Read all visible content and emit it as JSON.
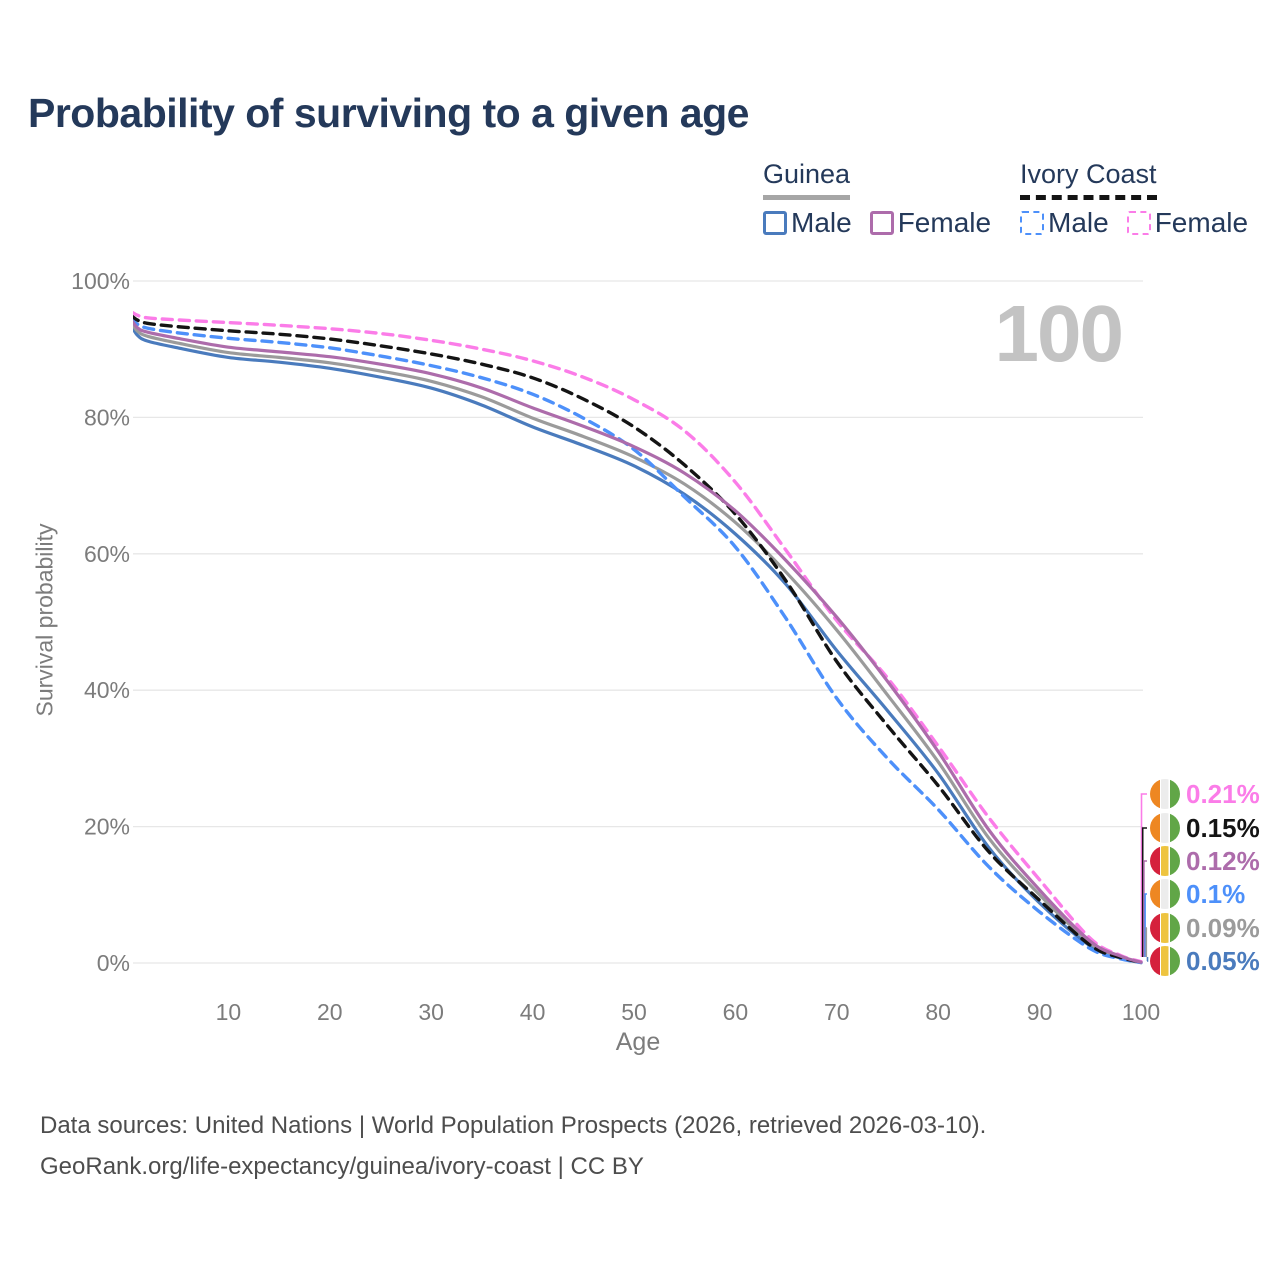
{
  "title": "Probability of surviving to a given age",
  "watermark": "100",
  "legend": {
    "groups": [
      {
        "title": "Guinea",
        "line_style": "solid",
        "underline_color": "#a6a6a6",
        "items": [
          {
            "label": "Male",
            "color": "#4a7bbd",
            "dashed": false
          },
          {
            "label": "Female",
            "color": "#ad6cab",
            "dashed": false
          }
        ]
      },
      {
        "title": "Ivory Coast",
        "line_style": "dashed",
        "underline_color": "#141414",
        "items": [
          {
            "label": "Male",
            "color": "#4d90fa",
            "dashed": true
          },
          {
            "label": "Female",
            "color": "#fb7ce8",
            "dashed": true
          }
        ]
      }
    ]
  },
  "chart_data": {
    "type": "line",
    "title": "Probability of surviving to a given age",
    "xlabel": "Age",
    "ylabel": "Survival probability",
    "xlim": [
      0,
      100
    ],
    "ylim": [
      0,
      100
    ],
    "grid": "horizontal",
    "x_ticks": [
      10,
      20,
      30,
      40,
      50,
      60,
      70,
      80,
      90,
      100
    ],
    "y_ticks": [
      {
        "value": 0,
        "label": "0%"
      },
      {
        "value": 20,
        "label": "20%"
      },
      {
        "value": 40,
        "label": "40%"
      },
      {
        "value": 60,
        "label": "60%"
      },
      {
        "value": 80,
        "label": "80%"
      },
      {
        "value": 100,
        "label": "100%"
      }
    ],
    "series": [
      {
        "name": "Guinea — Male",
        "country": "Guinea",
        "sex": "Male",
        "color": "#4a7bbd",
        "dashed": false,
        "points": [
          [
            0.3,
            93.8
          ],
          [
            1,
            92.1
          ],
          [
            2,
            91.2
          ],
          [
            5,
            90.2
          ],
          [
            10,
            88.8
          ],
          [
            15,
            88.1
          ],
          [
            20,
            87.2
          ],
          [
            25,
            85.9
          ],
          [
            30,
            84.3
          ],
          [
            35,
            81.8
          ],
          [
            40,
            78.6
          ],
          [
            45,
            75.9
          ],
          [
            50,
            72.9
          ],
          [
            55,
            68.7
          ],
          [
            60,
            62.9
          ],
          [
            65,
            55.5
          ],
          [
            70,
            45.8
          ],
          [
            75,
            37.0
          ],
          [
            80,
            27.8
          ],
          [
            85,
            16.9
          ],
          [
            90,
            8.8
          ],
          [
            95,
            2.5
          ],
          [
            98,
            0.7
          ],
          [
            100,
            0.05
          ]
        ]
      },
      {
        "name": "Guinea — Both sexes",
        "country": "Guinea",
        "sex": "Both",
        "color": "#9b9b9b",
        "dashed": false,
        "points": [
          [
            0.3,
            94.2
          ],
          [
            1,
            92.7
          ],
          [
            2,
            91.9
          ],
          [
            5,
            90.9
          ],
          [
            10,
            89.5
          ],
          [
            15,
            88.8
          ],
          [
            20,
            88.0
          ],
          [
            25,
            86.8
          ],
          [
            30,
            85.3
          ],
          [
            35,
            83.0
          ],
          [
            40,
            79.9
          ],
          [
            45,
            77.2
          ],
          [
            50,
            74.2
          ],
          [
            55,
            70.2
          ],
          [
            60,
            64.6
          ],
          [
            65,
            57.3
          ],
          [
            70,
            48.8
          ],
          [
            75,
            39.3
          ],
          [
            80,
            29.5
          ],
          [
            85,
            18.3
          ],
          [
            90,
            10.0
          ],
          [
            95,
            2.9
          ],
          [
            98,
            0.85
          ],
          [
            100,
            0.09
          ]
        ]
      },
      {
        "name": "Ivory Coast — Male",
        "country": "Ivory Coast",
        "sex": "Male",
        "color": "#4d90fa",
        "dashed": true,
        "points": [
          [
            0.3,
            94.6
          ],
          [
            1,
            93.7
          ],
          [
            2,
            93.1
          ],
          [
            5,
            92.4
          ],
          [
            10,
            91.6
          ],
          [
            15,
            91.0
          ],
          [
            20,
            90.2
          ],
          [
            25,
            89.0
          ],
          [
            30,
            87.6
          ],
          [
            35,
            85.8
          ],
          [
            40,
            83.4
          ],
          [
            45,
            79.9
          ],
          [
            50,
            75.3
          ],
          [
            55,
            68.3
          ],
          [
            60,
            61.0
          ],
          [
            65,
            50.5
          ],
          [
            70,
            38.8
          ],
          [
            75,
            30.0
          ],
          [
            80,
            22.5
          ],
          [
            85,
            14.1
          ],
          [
            90,
            7.5
          ],
          [
            95,
            2.1
          ],
          [
            98,
            0.6
          ],
          [
            100,
            0.1
          ]
        ]
      },
      {
        "name": "Ivory Coast — Both sexes",
        "country": "Ivory Coast",
        "sex": "Both",
        "color": "#141414",
        "dashed": true,
        "points": [
          [
            0.3,
            95.1
          ],
          [
            1,
            94.3
          ],
          [
            2,
            93.8
          ],
          [
            5,
            93.3
          ],
          [
            10,
            92.7
          ],
          [
            15,
            92.2
          ],
          [
            20,
            91.5
          ],
          [
            25,
            90.5
          ],
          [
            30,
            89.3
          ],
          [
            35,
            87.8
          ],
          [
            40,
            85.8
          ],
          [
            45,
            82.7
          ],
          [
            50,
            78.6
          ],
          [
            55,
            73.0
          ],
          [
            60,
            65.8
          ],
          [
            65,
            56.0
          ],
          [
            70,
            44.2
          ],
          [
            75,
            34.8
          ],
          [
            80,
            26.0
          ],
          [
            85,
            16.3
          ],
          [
            90,
            9.2
          ],
          [
            95,
            2.6
          ],
          [
            98,
            0.8
          ],
          [
            100,
            0.15
          ]
        ]
      },
      {
        "name": "Ivory Coast — Female",
        "country": "Ivory Coast",
        "sex": "Female",
        "color": "#fb7ce8",
        "dashed": true,
        "points": [
          [
            0.3,
            95.6
          ],
          [
            1,
            95.0
          ],
          [
            2,
            94.6
          ],
          [
            5,
            94.3
          ],
          [
            10,
            93.9
          ],
          [
            15,
            93.5
          ],
          [
            20,
            93.0
          ],
          [
            25,
            92.3
          ],
          [
            30,
            91.3
          ],
          [
            35,
            90.0
          ],
          [
            40,
            88.3
          ],
          [
            45,
            85.9
          ],
          [
            50,
            82.6
          ],
          [
            55,
            78.0
          ],
          [
            60,
            70.5
          ],
          [
            65,
            60.5
          ],
          [
            70,
            50.2
          ],
          [
            75,
            41.8
          ],
          [
            80,
            31.8
          ],
          [
            85,
            21.3
          ],
          [
            90,
            12.2
          ],
          [
            95,
            3.6
          ],
          [
            98,
            1.1
          ],
          [
            100,
            0.21
          ]
        ]
      },
      {
        "name": "Guinea — Female",
        "country": "Guinea",
        "sex": "Female",
        "color": "#ad6cab",
        "dashed": false,
        "points": [
          [
            0.3,
            94.6
          ],
          [
            1,
            93.2
          ],
          [
            2,
            92.5
          ],
          [
            5,
            91.6
          ],
          [
            10,
            90.3
          ],
          [
            15,
            89.6
          ],
          [
            20,
            88.9
          ],
          [
            25,
            87.8
          ],
          [
            30,
            86.4
          ],
          [
            35,
            84.3
          ],
          [
            40,
            81.4
          ],
          [
            45,
            78.7
          ],
          [
            50,
            75.7
          ],
          [
            55,
            71.8
          ],
          [
            60,
            66.3
          ],
          [
            65,
            59.0
          ],
          [
            70,
            50.7
          ],
          [
            75,
            41.3
          ],
          [
            80,
            31.0
          ],
          [
            85,
            19.5
          ],
          [
            90,
            10.7
          ],
          [
            95,
            3.2
          ],
          [
            98,
            1.0
          ],
          [
            100,
            0.12
          ]
        ]
      }
    ]
  },
  "end_labels": [
    {
      "value": "0.21%",
      "series": "Ivory Coast — Female",
      "color": "#fb7ce8",
      "flag": "ivory-coast"
    },
    {
      "value": "0.15%",
      "series": "Ivory Coast — Both sexes",
      "color": "#141414",
      "flag": "ivory-coast"
    },
    {
      "value": "0.12%",
      "series": "Guinea — Female",
      "color": "#ad6cab",
      "flag": "guinea"
    },
    {
      "value": "0.1%",
      "series": "Ivory Coast — Male",
      "color": "#4d90fa",
      "flag": "ivory-coast"
    },
    {
      "value": "0.09%",
      "series": "Guinea — Both sexes",
      "color": "#9b9b9b",
      "flag": "guinea"
    },
    {
      "value": "0.05%",
      "series": "Guinea — Male",
      "color": "#4a7bbd",
      "flag": "guinea"
    }
  ],
  "flags": {
    "guinea": [
      "#d5213c",
      "#eec43f",
      "#61a647"
    ],
    "ivory-coast": [
      "#ee8722",
      "#ececec",
      "#61a647"
    ]
  },
  "footer": {
    "line1": "Data sources: United Nations | World Population Prospects (2026, retrieved 2026-03-10).",
    "line2": "GeoRank.org/life-expectancy/guinea/ivory-coast | CC BY"
  },
  "colors": {
    "title_text": "#24395a",
    "axis_text": "#7c7c7c",
    "gridline": "#e7e7e7",
    "watermark": "#c3c3c3",
    "footer_text": "#4d4d4d"
  }
}
